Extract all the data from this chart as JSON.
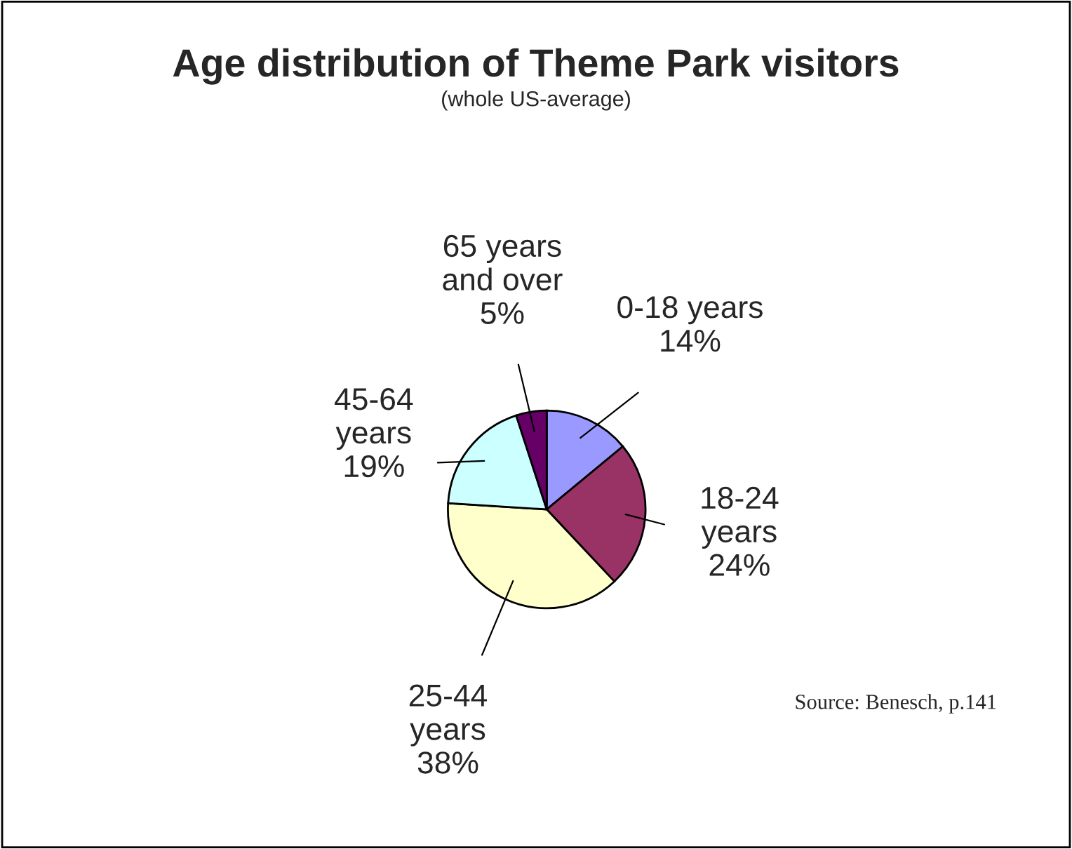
{
  "chart_data": {
    "type": "pie",
    "title": "Age distribution of Theme Park visitors",
    "subtitle": "(whole US-average)",
    "categories": [
      "0-18 years",
      "18-24\nyears",
      "25-44\nyears",
      "45-64\nyears",
      "65 years\nand over"
    ],
    "values": [
      14,
      24,
      38,
      19,
      5
    ],
    "value_labels": [
      "14%",
      "24%",
      "38%",
      "19%",
      "5%"
    ],
    "colors": [
      "#9999ff",
      "#993366",
      "#ffffcc",
      "#ccffff",
      "#660066"
    ],
    "annotations": [
      "Source: Benesch, p.141"
    ]
  }
}
